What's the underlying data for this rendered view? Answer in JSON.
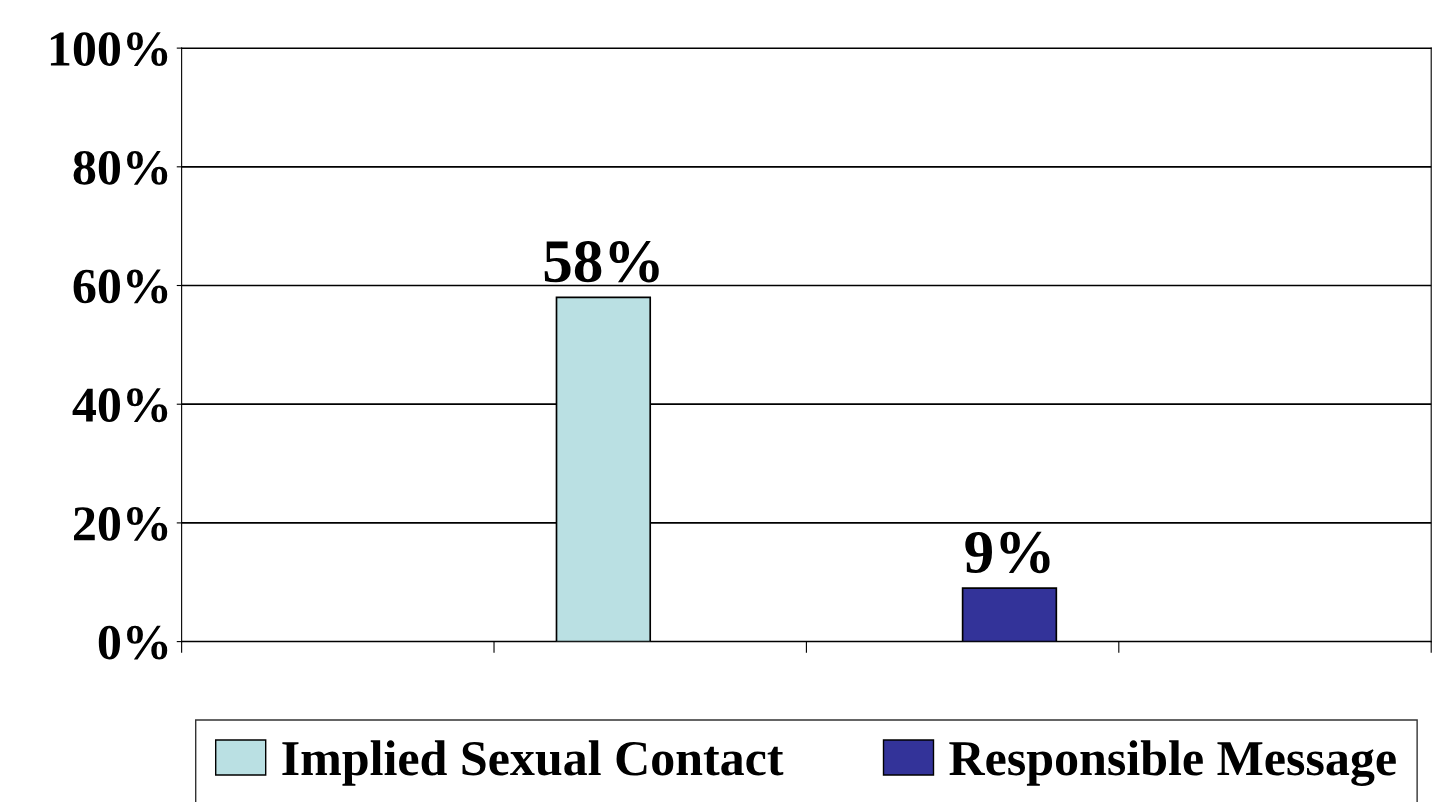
{
  "chart_data": {
    "type": "bar",
    "categories": [
      null,
      null,
      null,
      null
    ],
    "series": [
      {
        "name": "Implied Sexual Contact",
        "color": "#bae0e3",
        "values": [
          null,
          58,
          null,
          null
        ],
        "value_labels": [
          null,
          "58%",
          null,
          null
        ]
      },
      {
        "name": "Responsible Message",
        "color": "#333399",
        "values": [
          null,
          null,
          9,
          null
        ],
        "value_labels": [
          null,
          null,
          "9%",
          null
        ]
      }
    ],
    "ylim": [
      0,
      100
    ],
    "yticks": [
      {
        "value": 0,
        "label": "0%"
      },
      {
        "value": 20,
        "label": "20%"
      },
      {
        "value": 40,
        "label": "40%"
      },
      {
        "value": 60,
        "label": "60%"
      },
      {
        "value": 80,
        "label": "80%"
      },
      {
        "value": 100,
        "label": "100%"
      }
    ],
    "grid": "y",
    "legend": "bottom"
  }
}
